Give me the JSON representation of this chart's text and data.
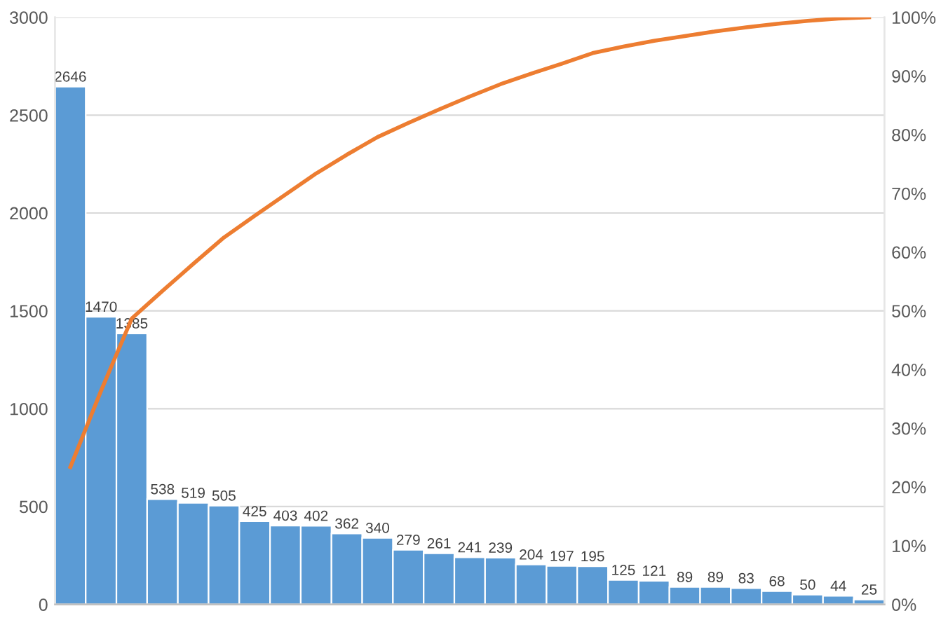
{
  "chart_data": {
    "type": "bar",
    "categories": [
      null,
      null,
      null,
      null,
      null,
      null,
      null,
      null,
      null,
      null,
      null,
      null,
      null,
      null,
      null,
      null,
      null,
      null,
      null,
      null,
      null,
      null,
      null,
      null,
      null,
      null,
      null
    ],
    "series": [
      {
        "color": "#5b9bd5",
        "values": [
          2646,
          1470,
          1385,
          538,
          519,
          505,
          425,
          403,
          402,
          362,
          340,
          279,
          261,
          241,
          239,
          204,
          197,
          195,
          125,
          121,
          89,
          89,
          83,
          68,
          50,
          44,
          25
        ],
        "value_labels": [
          "2646",
          "1470",
          "1385",
          "538",
          "519",
          "505",
          "425",
          "403",
          "402",
          "362",
          "340",
          "279",
          "261",
          "241",
          "239",
          "204",
          "197",
          "195",
          "125",
          "121",
          "89",
          "89",
          "83",
          "68",
          "50",
          "44",
          "25"
        ]
      },
      {
        "type": "line",
        "axis": "y2",
        "color": "#ed7d31",
        "values": [
          23.4,
          36.4,
          48.7,
          53.4,
          58.0,
          62.5,
          66.2,
          69.8,
          73.4,
          76.6,
          79.6,
          82.0,
          84.3,
          86.5,
          88.6,
          90.4,
          92.1,
          93.9,
          95.0,
          96.0,
          96.8,
          97.6,
          98.3,
          98.9,
          99.4,
          99.8,
          100
        ]
      }
    ],
    "ylim": [
      0,
      3000
    ],
    "yticks": [
      0,
      500,
      1000,
      1500,
      2000,
      2500,
      3000
    ],
    "y2lim": [
      0,
      100
    ],
    "y2ticks": [
      {
        "value": 0,
        "label": "0%"
      },
      {
        "value": 10,
        "label": "10%"
      },
      {
        "value": 20,
        "label": "20%"
      },
      {
        "value": 30,
        "label": "30%"
      },
      {
        "value": 40,
        "label": "40%"
      },
      {
        "value": 50,
        "label": "50%"
      },
      {
        "value": 60,
        "label": "60%"
      },
      {
        "value": 70,
        "label": "70%"
      },
      {
        "value": 80,
        "label": "80%"
      },
      {
        "value": 90,
        "label": "90%"
      },
      {
        "value": 100,
        "label": "100%"
      }
    ],
    "grid": "y",
    "tick_labels": "y"
  }
}
